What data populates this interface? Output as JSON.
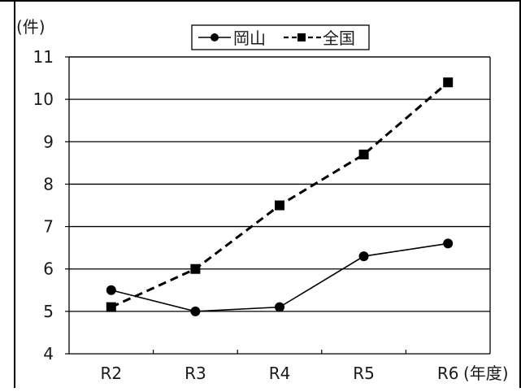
{
  "chart_data": {
    "type": "line",
    "categories": [
      "R2",
      "R3",
      "R4",
      "R5",
      "R6"
    ],
    "series": [
      {
        "name": "岡山",
        "values": [
          5.5,
          5.0,
          5.1,
          6.3,
          6.6
        ],
        "line_style": "solid",
        "marker": "circle"
      },
      {
        "name": "全国",
        "values": [
          5.1,
          6.0,
          7.5,
          8.7,
          10.4
        ],
        "line_style": "dashed",
        "marker": "square"
      }
    ],
    "ylim": [
      4,
      11
    ],
    "yticks": [
      "4",
      "5",
      "6",
      "7",
      "8",
      "9",
      "10",
      "11"
    ],
    "y_unit": "(件)",
    "x_unit": "(年度)",
    "legend_position": "top-center",
    "grid": true
  }
}
